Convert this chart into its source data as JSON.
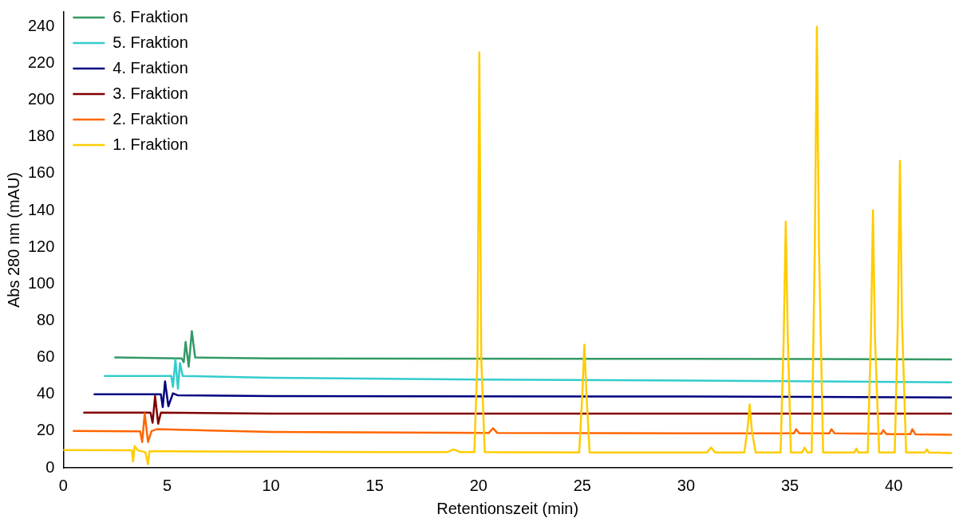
{
  "chart_data": {
    "type": "line",
    "xlabel": "Retentionszeit (min)",
    "ylabel": "Abs 280 nm (mAU)",
    "xlim": [
      0,
      42.8
    ],
    "xticks": [
      0,
      5,
      10,
      15,
      20,
      25,
      30,
      35,
      40
    ],
    "ylim": [
      0,
      248
    ],
    "yticks": [
      0,
      20,
      40,
      60,
      80,
      100,
      120,
      140,
      160,
      180,
      200,
      220,
      240
    ],
    "grid": false,
    "legend": "top left",
    "marker": "none",
    "line_style": "solid",
    "series": [
      {
        "name": "1. Fraktion",
        "color": "#ffcc00",
        "x": [
          0,
          3.3,
          3.36,
          3.43,
          3.6,
          3.95,
          4.08,
          4.15,
          5,
          10,
          15,
          18.5,
          18.8,
          19.1,
          19.8,
          19.95,
          20.04,
          20.13,
          20.3,
          21,
          22,
          24.85,
          25.0,
          25.1,
          25.2,
          25.35,
          28,
          31.0,
          31.2,
          31.4,
          32.8,
          32.95,
          33.06,
          33.17,
          33.35,
          34.55,
          34.7,
          34.8,
          34.9,
          35.05,
          35.6,
          35.7,
          35.85,
          36.05,
          36.2,
          36.3,
          36.4,
          36.6,
          38.1,
          38.2,
          38.3,
          38.75,
          38.9,
          39.0,
          39.1,
          39.3,
          40.05,
          40.2,
          40.3,
          40.4,
          40.6,
          41.5,
          41.6,
          41.7,
          42.8
        ],
        "values": [
          9.7,
          9.5,
          3.4,
          11.8,
          9.5,
          8.5,
          2,
          9,
          9,
          8.8,
          8.6,
          8.6,
          10,
          8.6,
          8.6,
          60,
          226,
          60,
          8.6,
          8.5,
          8.5,
          8.3,
          40,
          67,
          40,
          8.3,
          8.3,
          8.3,
          11,
          8.3,
          8.3,
          20,
          34.5,
          20,
          8.3,
          8.3,
          70,
          134,
          70,
          8.3,
          8.3,
          11,
          8.3,
          8.3,
          120,
          240,
          120,
          8.3,
          8.3,
          10.5,
          8.3,
          8.3,
          70,
          140,
          70,
          8.3,
          8.3,
          80,
          167,
          80,
          8.3,
          8.3,
          10,
          8.3,
          8
        ]
      },
      {
        "name": "2. Fraktion",
        "color": "#ff6600",
        "x": [
          0.5,
          3.7,
          3.8,
          3.92,
          4.08,
          4.25,
          4.5,
          10,
          20.5,
          20.7,
          20.9,
          30,
          35.2,
          35.3,
          35.45,
          36.9,
          37.0,
          37.15,
          39.4,
          39.5,
          39.65,
          40.8,
          40.9,
          41.05,
          42.8
        ],
        "values": [
          20,
          19.8,
          14,
          29.6,
          14,
          20,
          21,
          19.5,
          19,
          21.5,
          19,
          18.8,
          18.8,
          21,
          18.8,
          18.8,
          21,
          18.8,
          18.5,
          20.5,
          18.3,
          18.3,
          21,
          18.2,
          18
        ]
      },
      {
        "name": "3. Fraktion",
        "color": "#800000",
        "x": [
          1.0,
          4.2,
          4.3,
          4.42,
          4.57,
          4.7,
          10,
          20,
          30,
          42.8
        ],
        "values": [
          30,
          30,
          24.5,
          39,
          24,
          30,
          29.5,
          29.5,
          29.5,
          29.5
        ]
      },
      {
        "name": "4. Fraktion",
        "color": "#000080",
        "x": [
          1.5,
          4.7,
          4.79,
          4.9,
          5.06,
          5.28,
          5.5,
          10,
          30,
          42.8
        ],
        "values": [
          40,
          40,
          33,
          47,
          33.5,
          40.5,
          39.5,
          39,
          38.8,
          38.3
        ]
      },
      {
        "name": "5. Fraktion",
        "color": "#33cccc",
        "x": [
          2.0,
          5.2,
          5.28,
          5.4,
          5.52,
          5.62,
          5.75,
          10,
          20,
          30,
          42.8
        ],
        "values": [
          50,
          50,
          44,
          59,
          43,
          57,
          50,
          49,
          48,
          47.5,
          46.5
        ]
      },
      {
        "name": "6. Fraktion",
        "color": "#339966",
        "x": [
          2.5,
          5.7,
          5.8,
          5.89,
          6.04,
          6.19,
          6.35,
          10,
          30,
          42.8
        ],
        "values": [
          60,
          59.5,
          57.5,
          68.5,
          55,
          74.4,
          60,
          59.5,
          59.3,
          59
        ]
      }
    ]
  }
}
